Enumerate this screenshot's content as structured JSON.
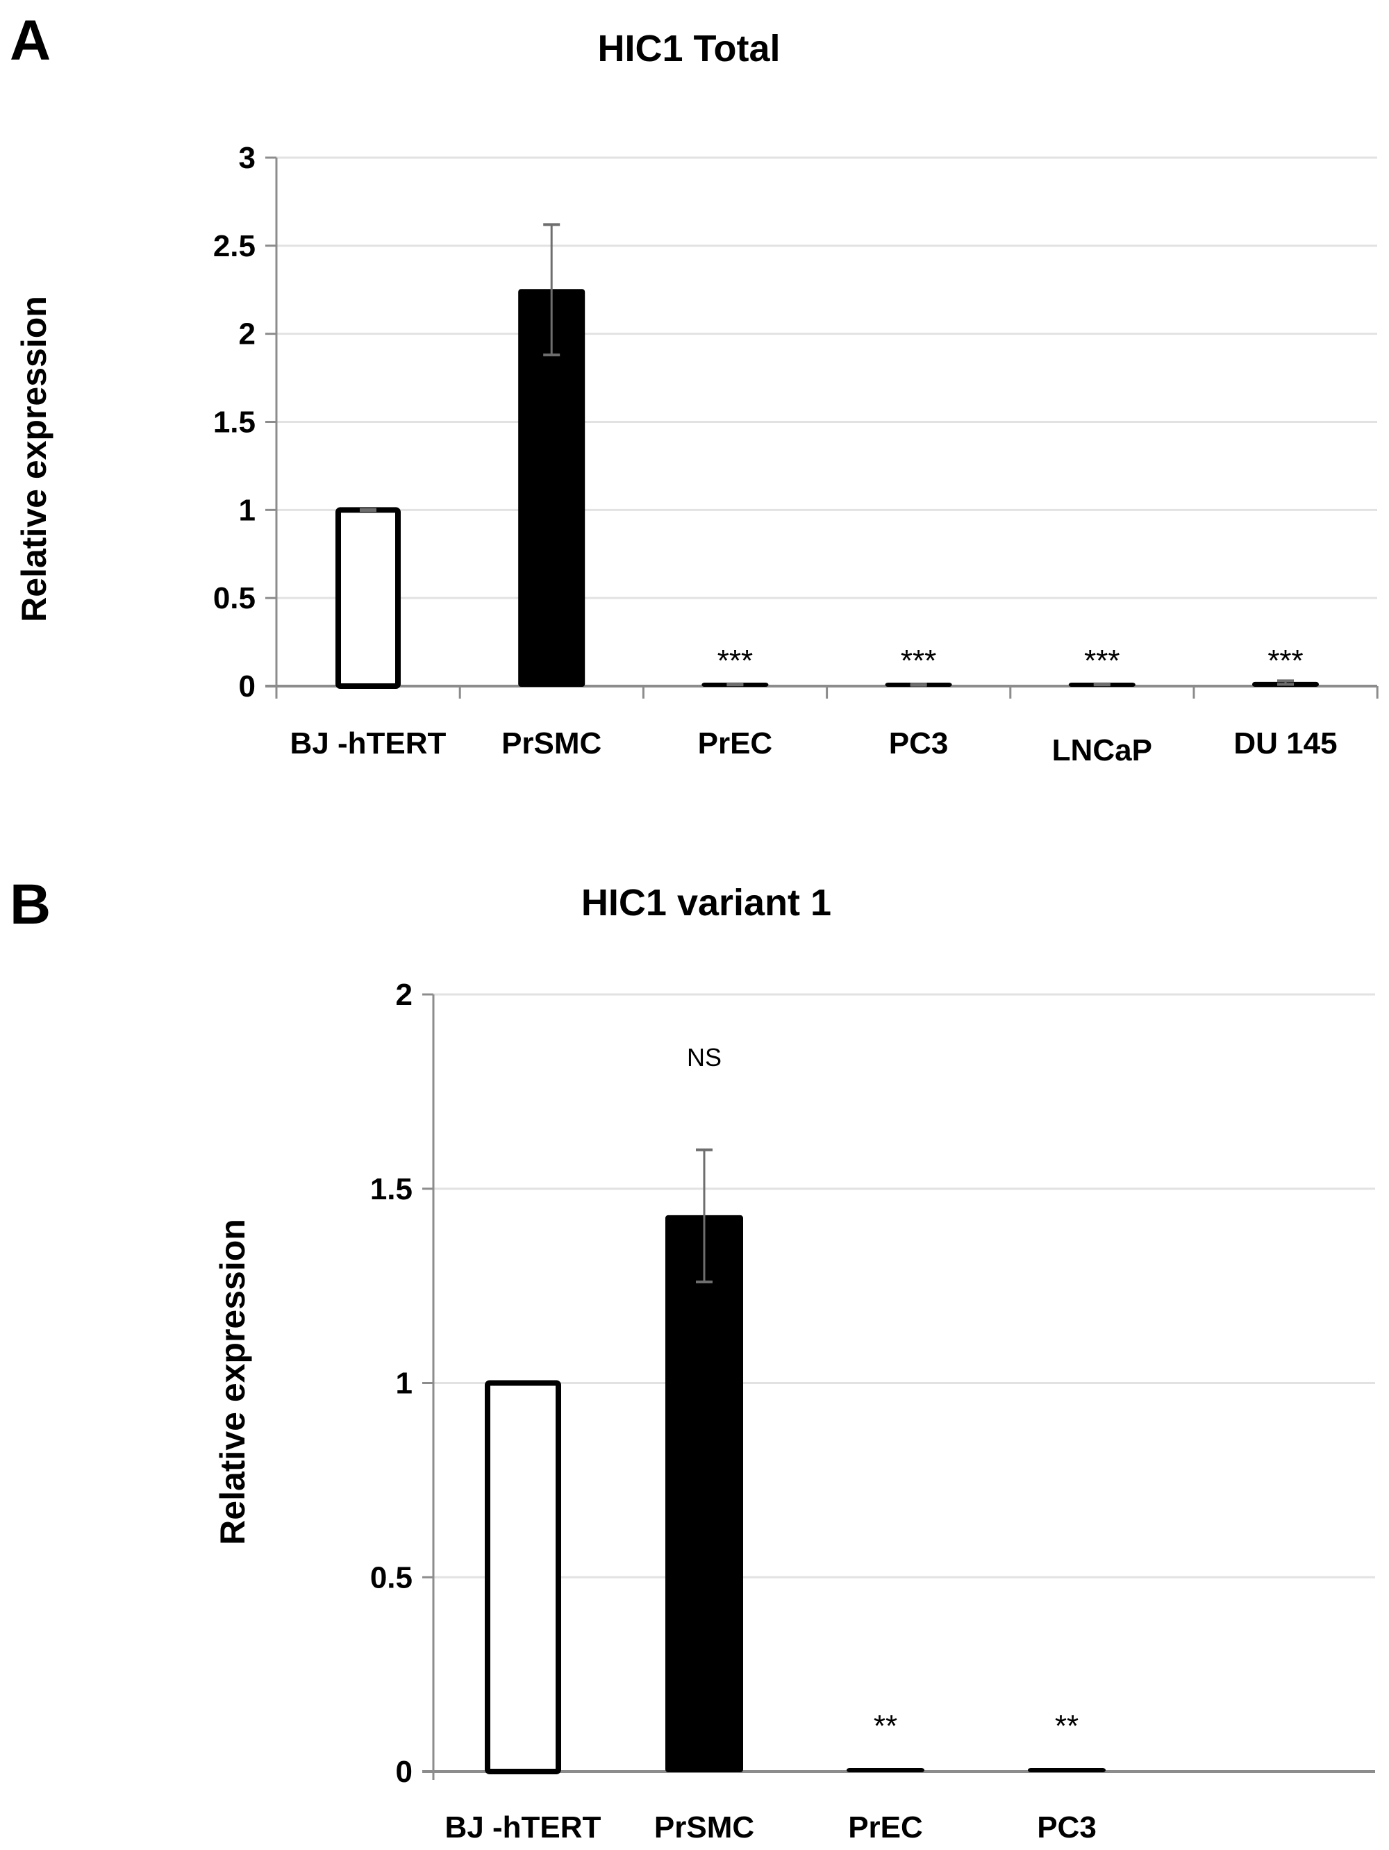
{
  "chart_data": [
    {
      "panel": "A",
      "type": "bar",
      "title": "HIC1 Total",
      "xlabel": "",
      "ylabel": "Relative expression",
      "ylim": [
        0,
        3
      ],
      "yticks": [
        "0",
        "0.5",
        "1",
        "1.5",
        "2",
        "2.5",
        "3"
      ],
      "grid": true,
      "categories": [
        "BJ -hTERT",
        "PrSMC",
        "PrEC",
        "PC3",
        "LNCaP",
        "DU 145"
      ],
      "values": [
        1.0,
        2.25,
        0.01,
        0.008,
        0.01,
        0.02
      ],
      "errors": [
        0.003,
        0.37,
        0.003,
        0.003,
        0.003,
        0.01
      ],
      "fills": [
        "#ffffff",
        "#000000",
        "#000000",
        "#000000",
        "#000000",
        "#000000"
      ],
      "annotations": [
        "",
        "",
        "***",
        "***",
        "***",
        "***"
      ]
    },
    {
      "panel": "B",
      "type": "bar",
      "title": "HIC1 variant 1",
      "xlabel": "",
      "ylabel": "Relative expression",
      "ylim": [
        0,
        2
      ],
      "yticks": [
        "0",
        "0.5",
        "1",
        "1.5",
        "2"
      ],
      "grid": true,
      "categories": [
        "BJ -hTERT",
        "PrSMC",
        "PrEC",
        "PC3"
      ],
      "values": [
        1.0,
        1.43,
        0.002,
        0.002
      ],
      "errors": [
        0,
        0.17,
        0,
        0
      ],
      "fills": [
        "#ffffff",
        "#000000",
        "#000000",
        "#000000"
      ],
      "annotations": [
        "",
        "NS",
        "**",
        "**"
      ]
    }
  ]
}
